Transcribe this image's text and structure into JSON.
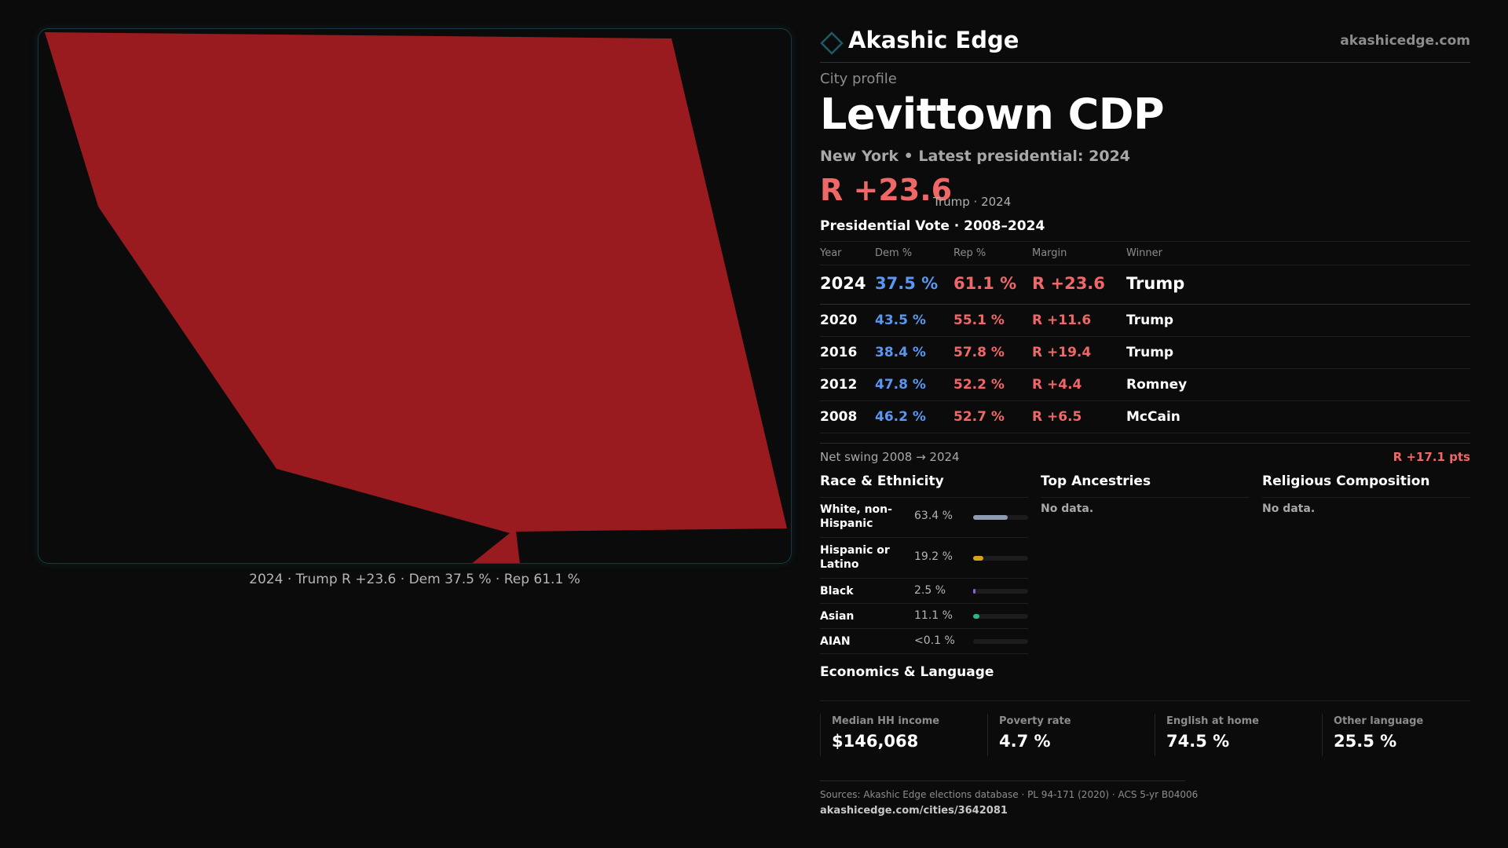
{
  "colors": {
    "background": "#0b0b0b",
    "republican": "#f06767",
    "democrat": "#5b96f0",
    "map_fill": "#9a1b1f",
    "accent_teal": "#1c5a64"
  },
  "brand": {
    "logo_icon": "diamond-outline-icon",
    "name": "Akashic Edge",
    "site": "akashicedge.com"
  },
  "map": {
    "caption": "2024 · Trump R +23.6 · Dem 37.5 % · Rep 61.1 %"
  },
  "profile": {
    "kicker": "City profile",
    "title": "Levittown CDP",
    "subtitle": "New York  • Latest presidential: 2024",
    "headline_margin": "R +23.6",
    "headline_meta": "Trump · 2024"
  },
  "presidential": {
    "title": "Presidential Vote · 2008–2024",
    "headers": {
      "year": "Year",
      "dem": "Dem %",
      "rep": "Rep %",
      "margin": "Margin",
      "winner": "Winner"
    },
    "rows": [
      {
        "year": "2024",
        "dem": "37.5 %",
        "rep": "61.1 %",
        "margin": "R +23.6",
        "winner": "Trump"
      },
      {
        "year": "2020",
        "dem": "43.5 %",
        "rep": "55.1 %",
        "margin": "R +11.6",
        "winner": "Trump"
      },
      {
        "year": "2016",
        "dem": "38.4 %",
        "rep": "57.8 %",
        "margin": "R +19.4",
        "winner": "Trump"
      },
      {
        "year": "2012",
        "dem": "47.8 %",
        "rep": "52.2 %",
        "margin": "R +4.4",
        "winner": "Romney"
      },
      {
        "year": "2008",
        "dem": "46.2 %",
        "rep": "52.7 %",
        "margin": "R +6.5",
        "winner": "McCain"
      }
    ],
    "swing_label": "Net swing 2008 → 2024",
    "swing_value": "R +17.1 pts"
  },
  "race": {
    "title": "Race & Ethnicity",
    "rows": [
      {
        "label": "White, non-Hispanic",
        "pct": "63.4 %",
        "value": 63.4,
        "color": "#8f9bb0"
      },
      {
        "label": "Hispanic or Latino",
        "pct": "19.2 %",
        "value": 19.2,
        "color": "#d9a21b"
      },
      {
        "label": "Black",
        "pct": "2.5 %",
        "value": 2.5,
        "color": "#8a5fe0"
      },
      {
        "label": "Asian",
        "pct": "11.1 %",
        "value": 11.1,
        "color": "#26b58c"
      },
      {
        "label": "AIAN",
        "pct": "<0.1 %",
        "value": 0.05,
        "color": "#888888"
      }
    ]
  },
  "ancestries": {
    "title": "Top Ancestries",
    "empty": "No data."
  },
  "religion": {
    "title": "Religious Composition",
    "empty": "No data."
  },
  "economics": {
    "title": "Economics & Language",
    "stats": [
      {
        "label": "Median HH income",
        "value": "$146,068"
      },
      {
        "label": "Poverty rate",
        "value": "4.7 %"
      },
      {
        "label": "English at home",
        "value": "74.5 %"
      },
      {
        "label": "Other language",
        "value": "25.5 %"
      }
    ]
  },
  "sources": {
    "text": "Sources: Akashic Edge elections database · PL 94-171 (2020) · ACS 5-yr B04006",
    "url": "akashicedge.com/cities/3642081"
  }
}
